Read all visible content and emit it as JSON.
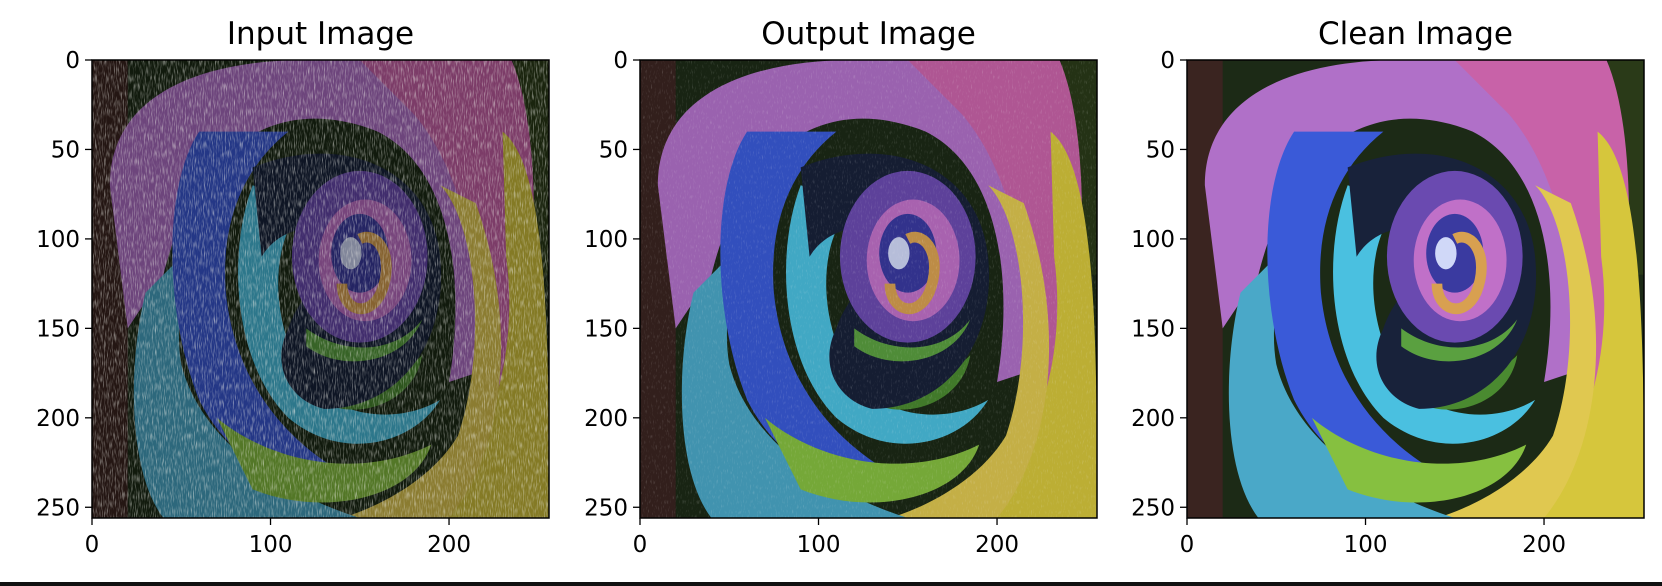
{
  "panels": [
    {
      "id": "input",
      "title": "Input Image",
      "noise": "heavy",
      "tint": "dim",
      "x_ticks": [
        "0",
        "100",
        "200"
      ],
      "y_ticks": [
        "0",
        "50",
        "100",
        "150",
        "200",
        "250"
      ]
    },
    {
      "id": "output",
      "title": "Output Image",
      "noise": "light",
      "tint": "mid",
      "x_ticks": [
        "0",
        "100",
        "200"
      ],
      "y_ticks": [
        "0",
        "50",
        "100",
        "150",
        "200",
        "250"
      ]
    },
    {
      "id": "clean",
      "title": "Clean Image",
      "noise": "none",
      "tint": "bright",
      "x_ticks": [
        "0",
        "100",
        "200"
      ],
      "y_ticks": [
        "0",
        "50",
        "100",
        "150",
        "200",
        "250"
      ]
    }
  ],
  "axis": {
    "x_values": [
      0,
      100,
      200
    ],
    "y_values": [
      0,
      50,
      100,
      150,
      200,
      250
    ],
    "image_size": 256
  },
  "colors": {
    "petal_purple": "#b070c8",
    "petal_pink": "#c860a8",
    "petal_blue": "#3a5ad8",
    "petal_cyan": "#4ab8d8",
    "petal_green": "#7ab83a",
    "petal_yellow": "#d8c83a",
    "background_dark": "#1a2a14"
  }
}
